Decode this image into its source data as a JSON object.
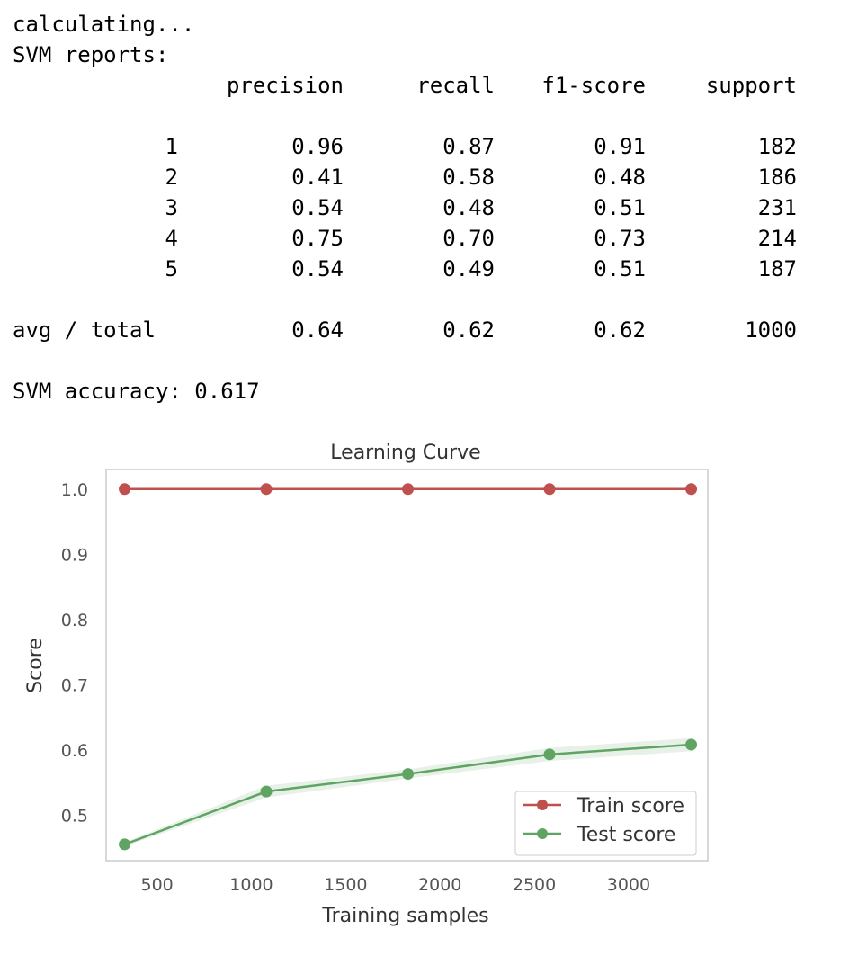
{
  "console": {
    "status_line": "calculating...",
    "report_heading": "SVM reports:",
    "columns": [
      "precision",
      "recall",
      "f1-score",
      "support"
    ],
    "rows": [
      {
        "label": "1",
        "precision": "0.96",
        "recall": "0.87",
        "f1": "0.91",
        "support": "182"
      },
      {
        "label": "2",
        "precision": "0.41",
        "recall": "0.58",
        "f1": "0.48",
        "support": "186"
      },
      {
        "label": "3",
        "precision": "0.54",
        "recall": "0.48",
        "f1": "0.51",
        "support": "231"
      },
      {
        "label": "4",
        "precision": "0.75",
        "recall": "0.70",
        "f1": "0.73",
        "support": "214"
      },
      {
        "label": "5",
        "precision": "0.54",
        "recall": "0.49",
        "f1": "0.51",
        "support": "187"
      }
    ],
    "total_row": {
      "label": "avg / total",
      "precision": "0.64",
      "recall": "0.62",
      "f1": "0.62",
      "support": "1000"
    },
    "accuracy_line": "SVM accuracy: 0.617"
  },
  "chart_data": {
    "type": "line",
    "title": "Learning Curve",
    "xlabel": "Training samples",
    "ylabel": "Score",
    "xlim": [
      230,
      3420
    ],
    "ylim": [
      0.43,
      1.03
    ],
    "xticks": [
      500,
      1000,
      1500,
      2000,
      2500,
      3000
    ],
    "yticks": [
      0.5,
      0.6,
      0.7,
      0.8,
      0.9,
      1.0
    ],
    "xtick_labels": [
      "500",
      "1000",
      "1500",
      "2000",
      "2500",
      "3000"
    ],
    "ytick_labels": [
      "0.5",
      "0.6",
      "0.7",
      "0.8",
      "0.9",
      "1.0"
    ],
    "grid": false,
    "legend_position": "lower-right",
    "x": [
      328,
      1079,
      1830,
      2581,
      3332
    ],
    "series": [
      {
        "name": "Train score",
        "color": "#c0504d",
        "values": [
          1.0,
          1.0,
          1.0,
          1.0,
          1.0
        ],
        "band_low": [
          1.0,
          1.0,
          1.0,
          1.0,
          1.0
        ],
        "band_high": [
          1.0,
          1.0,
          1.0,
          1.0,
          1.0
        ]
      },
      {
        "name": "Test score",
        "color": "#5fa463",
        "values": [
          0.455,
          0.536,
          0.563,
          0.593,
          0.608
        ],
        "band_low": [
          0.452,
          0.527,
          0.556,
          0.583,
          0.598
        ],
        "band_high": [
          0.458,
          0.545,
          0.57,
          0.603,
          0.618
        ]
      }
    ]
  }
}
